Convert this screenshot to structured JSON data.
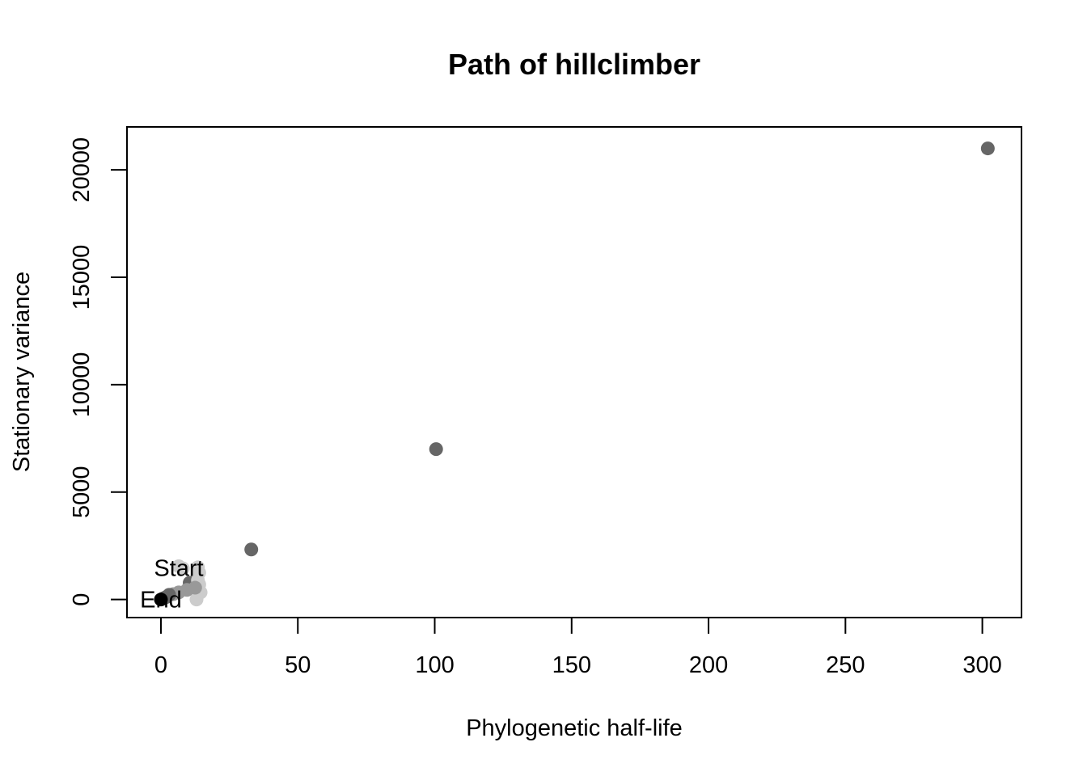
{
  "chart_data": {
    "type": "scatter",
    "title": "Path of hillclimber",
    "xlabel": "Phylogenetic half-life",
    "ylabel": "Stationary variance",
    "xlim": [
      -12.4,
      314.3
    ],
    "ylim": [
      -840,
      22000
    ],
    "x_ticks": [
      0,
      50,
      100,
      150,
      200,
      250,
      300
    ],
    "y_ticks": [
      0,
      5000,
      10000,
      15000,
      20000
    ],
    "grid": false,
    "legend": "none",
    "colors": {
      "dark": "#666666",
      "mid": "#999999",
      "light": "#cccccc",
      "end": "#000000"
    },
    "points": [
      {
        "x": 302,
        "y": 21000,
        "tone": "dark"
      },
      {
        "x": 100.5,
        "y": 7000,
        "tone": "dark"
      },
      {
        "x": 33,
        "y": 2330,
        "tone": "dark"
      },
      {
        "x": 10.5,
        "y": 780,
        "tone": "dark"
      },
      {
        "x": 6.5,
        "y": 1550,
        "tone": "light"
      },
      {
        "x": 8,
        "y": 1450,
        "tone": "light"
      },
      {
        "x": 13.5,
        "y": 1500,
        "tone": "light"
      },
      {
        "x": 14,
        "y": 1250,
        "tone": "light"
      },
      {
        "x": 13.5,
        "y": 900,
        "tone": "light"
      },
      {
        "x": 14,
        "y": 700,
        "tone": "light"
      },
      {
        "x": 14.5,
        "y": 330,
        "tone": "light"
      },
      {
        "x": 13,
        "y": 0,
        "tone": "light"
      },
      {
        "x": 12.5,
        "y": 550,
        "tone": "mid"
      },
      {
        "x": 9.5,
        "y": 450,
        "tone": "mid"
      },
      {
        "x": 6.5,
        "y": 330,
        "tone": "mid"
      },
      {
        "x": 4.5,
        "y": 250,
        "tone": "mid"
      },
      {
        "x": 3,
        "y": 220,
        "tone": "dark"
      },
      {
        "x": 2,
        "y": 120,
        "tone": "dark"
      },
      {
        "x": 1,
        "y": 60,
        "tone": "dark"
      },
      {
        "x": 0,
        "y": 0,
        "tone": "end"
      }
    ],
    "annotations": [
      {
        "text": "Start",
        "x": 6.5,
        "y": 1480
      },
      {
        "text": "End",
        "x": 0,
        "y": 0
      }
    ]
  }
}
